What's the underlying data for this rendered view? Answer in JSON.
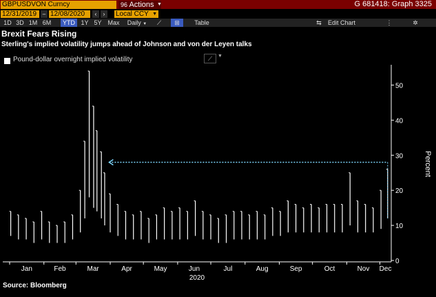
{
  "topbar": {
    "ticker": "GBPUSDVON Curncy",
    "actions_icon": "96",
    "actions_label": "Actions",
    "graph_id": "G 681418: Graph 3325"
  },
  "datebar": {
    "start_date": "12/31/2019",
    "end_date": "12/08/2020",
    "currency": "Local CCY"
  },
  "toolbar": {
    "ranges": [
      "1D",
      "3D",
      "1M",
      "6M",
      "YTD",
      "1Y",
      "5Y",
      "Max"
    ],
    "active_range": "YTD",
    "frequency": "Daily",
    "table_label": "Table",
    "edit_chart_label": "Edit Chart"
  },
  "chart_data": {
    "type": "line",
    "title": "Brexit Fears Rising",
    "subtitle": "Sterling's implied volatility jumps ahead of Johnson and von der Leyen talks",
    "ylabel": "Percent",
    "xlabel": "2020",
    "ylim": [
      0,
      55
    ],
    "yticks": [
      0,
      10,
      20,
      30,
      40,
      50
    ],
    "x_tick_labels": [
      "Jan",
      "Feb",
      "Mar",
      "Apr",
      "May",
      "Jun",
      "Jul",
      "Aug",
      "Sep",
      "Oct",
      "Nov",
      "Dec"
    ],
    "series": [
      {
        "name": "Pound-dollar overnight implied volatility",
        "color": "#ffffff",
        "style": "high-low bars",
        "points": [
          {
            "date": "2020-01-02",
            "low": 7,
            "high": 14
          },
          {
            "date": "2020-01-09",
            "low": 6,
            "high": 13
          },
          {
            "date": "2020-01-16",
            "low": 6,
            "high": 12
          },
          {
            "date": "2020-01-23",
            "low": 5,
            "high": 11
          },
          {
            "date": "2020-01-30",
            "low": 6,
            "high": 14
          },
          {
            "date": "2020-02-06",
            "low": 5,
            "high": 11
          },
          {
            "date": "2020-02-13",
            "low": 5,
            "high": 10
          },
          {
            "date": "2020-02-20",
            "low": 5,
            "high": 11
          },
          {
            "date": "2020-02-27",
            "low": 6,
            "high": 13
          },
          {
            "date": "2020-03-05",
            "low": 8,
            "high": 20
          },
          {
            "date": "2020-03-09",
            "low": 12,
            "high": 34
          },
          {
            "date": "2020-03-13",
            "low": 18,
            "high": 54
          },
          {
            "date": "2020-03-17",
            "low": 15,
            "high": 44
          },
          {
            "date": "2020-03-20",
            "low": 14,
            "high": 37
          },
          {
            "date": "2020-03-24",
            "low": 12,
            "high": 31
          },
          {
            "date": "2020-03-27",
            "low": 10,
            "high": 25
          },
          {
            "date": "2020-04-01",
            "low": 8,
            "high": 19
          },
          {
            "date": "2020-04-08",
            "low": 7,
            "high": 16
          },
          {
            "date": "2020-04-15",
            "low": 6,
            "high": 14
          },
          {
            "date": "2020-04-22",
            "low": 6,
            "high": 13
          },
          {
            "date": "2020-04-29",
            "low": 6,
            "high": 14
          },
          {
            "date": "2020-05-06",
            "low": 5,
            "high": 12
          },
          {
            "date": "2020-05-13",
            "low": 6,
            "high": 13
          },
          {
            "date": "2020-05-20",
            "low": 6,
            "high": 15
          },
          {
            "date": "2020-05-27",
            "low": 6,
            "high": 14
          },
          {
            "date": "2020-06-03",
            "low": 6,
            "high": 15
          },
          {
            "date": "2020-06-10",
            "low": 6,
            "high": 14
          },
          {
            "date": "2020-06-17",
            "low": 7,
            "high": 17
          },
          {
            "date": "2020-06-24",
            "low": 6,
            "high": 14
          },
          {
            "date": "2020-07-01",
            "low": 6,
            "high": 13
          },
          {
            "date": "2020-07-08",
            "low": 5,
            "high": 12
          },
          {
            "date": "2020-07-15",
            "low": 5,
            "high": 13
          },
          {
            "date": "2020-07-22",
            "low": 6,
            "high": 14
          },
          {
            "date": "2020-07-29",
            "low": 6,
            "high": 14
          },
          {
            "date": "2020-08-05",
            "low": 6,
            "high": 13
          },
          {
            "date": "2020-08-12",
            "low": 6,
            "high": 14
          },
          {
            "date": "2020-08-19",
            "low": 6,
            "high": 13
          },
          {
            "date": "2020-08-26",
            "low": 7,
            "high": 15
          },
          {
            "date": "2020-09-02",
            "low": 7,
            "high": 14
          },
          {
            "date": "2020-09-09",
            "low": 8,
            "high": 17
          },
          {
            "date": "2020-09-16",
            "low": 8,
            "high": 16
          },
          {
            "date": "2020-09-23",
            "low": 8,
            "high": 15
          },
          {
            "date": "2020-09-30",
            "low": 8,
            "high": 16
          },
          {
            "date": "2020-10-07",
            "low": 8,
            "high": 15
          },
          {
            "date": "2020-10-14",
            "low": 8,
            "high": 16
          },
          {
            "date": "2020-10-21",
            "low": 8,
            "high": 16
          },
          {
            "date": "2020-10-28",
            "low": 8,
            "high": 16
          },
          {
            "date": "2020-11-04",
            "low": 10,
            "high": 25
          },
          {
            "date": "2020-11-11",
            "low": 8,
            "high": 17
          },
          {
            "date": "2020-11-18",
            "low": 8,
            "high": 16
          },
          {
            "date": "2020-11-25",
            "low": 8,
            "high": 15
          },
          {
            "date": "2020-12-02",
            "low": 9,
            "high": 20
          },
          {
            "date": "2020-12-08",
            "low": 12,
            "high": 26
          }
        ]
      }
    ],
    "reference_line": {
      "y": 28,
      "from_date": "2020-03-31",
      "to_date": "2020-12-08",
      "color": "#7fd8ff",
      "style": "dotted",
      "arrow": "left"
    }
  },
  "footer": {
    "source": "Source:  Bloomberg"
  }
}
